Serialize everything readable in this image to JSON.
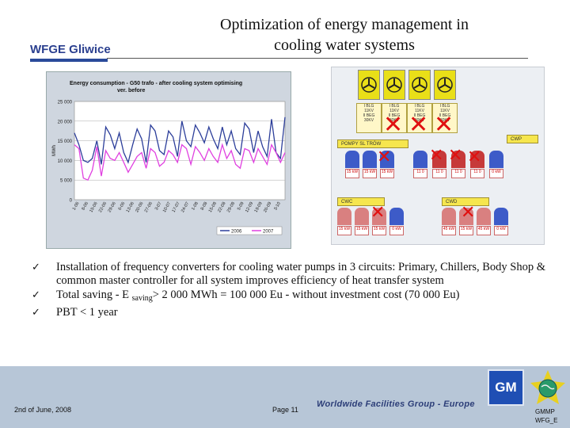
{
  "header": {
    "org": "WFGE Gliwice",
    "title_line1": "Optimization of energy management in",
    "title_line2": "cooling water systems"
  },
  "chart": {
    "title_line1": "Energy consumption - G50 trafo - after cooling system optimising",
    "title_line2": "ver. before"
  },
  "chart_data": {
    "type": "line",
    "title": "Energy consumption - G50 trafo - after cooling system optimising ver. before",
    "ylabel": "MWh",
    "ylim": [
      0,
      25000
    ],
    "yticks": [
      "25 000",
      "20 000",
      "15 000",
      "10 000",
      "5 000",
      "0"
    ],
    "yticks_values": [
      25000,
      20000,
      15000,
      10000,
      5000,
      0
    ],
    "xticks": [
      "1-06",
      "8-06",
      "15-06",
      "22-06",
      "29-06",
      "6-06",
      "13-06",
      "20-06",
      "27-06",
      "3-07",
      "10-07",
      "17-07",
      "24-07",
      "1-08",
      "8-08",
      "15-08",
      "22-08",
      "29-08",
      "5-09",
      "12-09",
      "19-09",
      "26-09",
      "3-10"
    ],
    "grid": true,
    "legend_position": "bottom-right",
    "series": [
      {
        "name": "2006",
        "color": "#2c3e9a",
        "values": [
          17000,
          14000,
          10000,
          9500,
          10500,
          15000,
          9000,
          18500,
          16500,
          13000,
          17000,
          12000,
          9500,
          14000,
          18000,
          15500,
          9500,
          19000,
          17500,
          12500,
          11500,
          17500,
          16000,
          11000,
          20000,
          15000,
          13500,
          19000,
          17000,
          14500,
          18500,
          15500,
          13000,
          18500,
          14000,
          17500,
          13000,
          11500,
          19500,
          18000,
          12000,
          17500,
          13500,
          11000,
          20500,
          12000,
          10500,
          21000
        ]
      },
      {
        "name": "2007",
        "color": "#e040e0",
        "values": [
          14000,
          13000,
          5500,
          5000,
          7500,
          13500,
          6000,
          12500,
          10500,
          10000,
          12000,
          9500,
          7000,
          9000,
          11000,
          12000,
          8000,
          13000,
          12000,
          8500,
          9500,
          12500,
          11500,
          9500,
          14000,
          13000,
          9000,
          13500,
          12000,
          10000,
          13000,
          11000,
          9500,
          14000,
          10500,
          12500,
          9000,
          8000,
          13000,
          12500,
          9500,
          13000,
          11000,
          9000,
          14000,
          12000,
          9500,
          12000
        ]
      }
    ]
  },
  "diagram": {
    "towers": [
      {
        "l1": "I BLG",
        "l2": "11KV",
        "l3": "II BEG",
        "l4": "30KV"
      },
      {
        "l1": "I BLG",
        "l2": "11KV",
        "l3": "II BEG",
        "l4": "30KV"
      },
      {
        "l1": "I BLG",
        "l2": "11KV",
        "l3": "II BEG",
        "l4": "30KV"
      },
      {
        "l1": "I BLG",
        "l2": "11KV",
        "l3": "II BEG",
        "l4": "30KV"
      }
    ],
    "boxes": {
      "primary": "POMPY SL TRÓW",
      "cwp": "CWP",
      "cwc": "CWC",
      "cwd": "CWD"
    },
    "pumps_row1": [
      "15 kW",
      "15 kW",
      "15 kW",
      "11 0",
      "11 0",
      "11 0",
      "11 0",
      "0 kW"
    ],
    "pumps_row2": [
      "15 kW",
      "15 kW",
      "15 kW",
      "0 kW",
      "45 kW",
      "15 kW",
      "45 kW",
      "0 kW"
    ]
  },
  "bullets": [
    {
      "text": "Installation of frequency converters for cooling water pumps in 3 circuits: Primary, Chillers, Body Shop & common master controller for all system improves efficiency of heat transfer system"
    },
    {
      "pre": "Total saving  - E ",
      "sub": "saving",
      "post": "> 2 000 MWh  = 100 000 Eu - without investment cost (70 000 Eu)"
    },
    {
      "text": "PBT  < 1 year"
    }
  ],
  "footer": {
    "date": "2nd of June, 2008",
    "page": "Page 11",
    "group": "Worldwide Facilities Group - Europe",
    "gm_logo": "GM",
    "gmmp_line1": "GMMP",
    "gmmp_line2": "WFG_E"
  }
}
